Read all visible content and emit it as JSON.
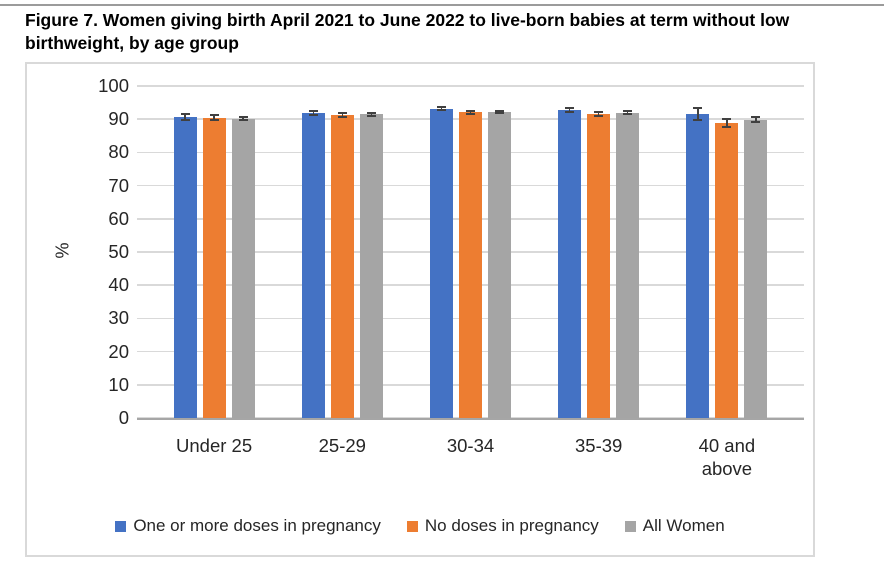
{
  "figure": {
    "title": "Figure 7. Women giving birth April 2021 to June 2022 to live-born babies at term without low birthweight, by age group"
  },
  "chart_data": {
    "type": "bar",
    "title": "Figure 7. Women giving birth April 2021 to June 2022 to live-born babies at term without low birthweight, by age group",
    "xlabel": "",
    "ylabel": "%",
    "ylim": [
      0,
      100
    ],
    "ytick_step": 10,
    "grid": true,
    "legend_position": "bottom",
    "error_bars": true,
    "categories": [
      "Under 25",
      "25-29",
      "30-34",
      "35-39",
      "40 and above"
    ],
    "series": [
      {
        "name": "One or more doses in pregnancy",
        "color": "#4472C4",
        "values": [
          90.6,
          92.0,
          93.2,
          92.9,
          91.5
        ],
        "error": [
          0.9,
          0.6,
          0.5,
          0.6,
          1.8
        ]
      },
      {
        "name": "No doses in pregnancy",
        "color": "#ED7D31",
        "values": [
          90.5,
          91.4,
          92.1,
          91.6,
          88.9
        ],
        "error": [
          0.8,
          0.6,
          0.5,
          0.7,
          1.2
        ]
      },
      {
        "name": "All Women",
        "color": "#A5A5A5",
        "values": [
          90.2,
          91.5,
          92.3,
          92.0,
          89.9
        ],
        "error": [
          0.5,
          0.4,
          0.3,
          0.4,
          0.7
        ]
      }
    ],
    "colors": {
      "gridline": "#D9D9D9",
      "axis_line": "#A6A6A6",
      "error_bar": "#404040",
      "frame_border": "#D9D9D9",
      "top_rule": "#9B9B9B",
      "text": "#262626"
    }
  }
}
